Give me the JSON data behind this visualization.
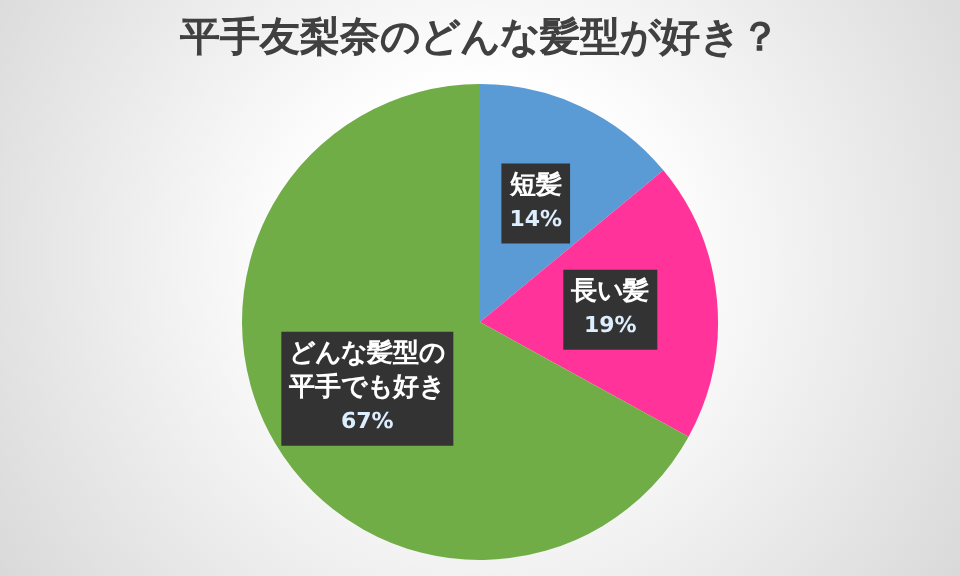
{
  "chart_data": {
    "type": "pie",
    "title": "平手友梨奈のどんな髪型が好き？",
    "categories": [
      "短髪",
      "長い髪",
      "どんな髪型の平手でも好き"
    ],
    "values": [
      14,
      19,
      67
    ],
    "colors": [
      "#5b9bd5",
      "#ff3399",
      "#70ad47"
    ],
    "value_labels": [
      "14%",
      "19%",
      "67%"
    ],
    "legend": false
  }
}
